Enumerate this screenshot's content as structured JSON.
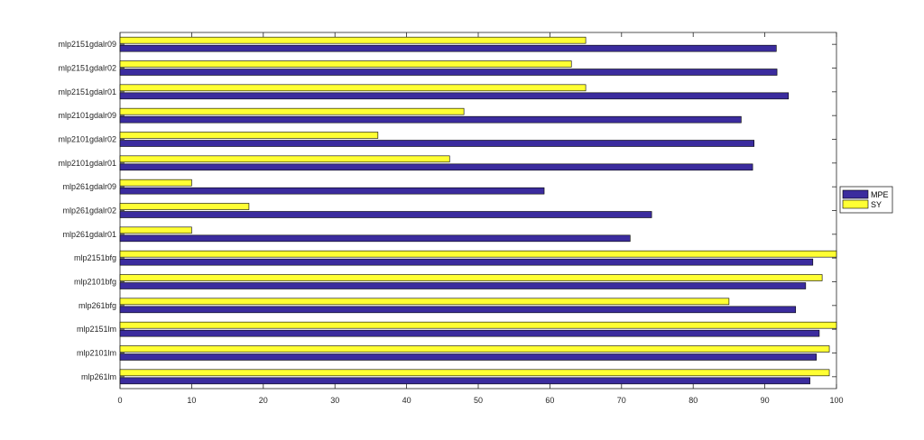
{
  "chart_data": {
    "type": "bar",
    "orientation": "horizontal",
    "categories": [
      "mlp261lm",
      "mlp2101lm",
      "mlp2151lm",
      "mlp261bfg",
      "mlp2101bfg",
      "mlp2151bfg",
      "mlp261gdalr01",
      "mlp261gdalr02",
      "mlp261gdalr09",
      "mlp2101gdalr01",
      "mlp2101gdalr02",
      "mlp2101gdalr09",
      "mlp2151gdalr01",
      "mlp2151gdalr02",
      "mlp2151gdalr09"
    ],
    "series": [
      {
        "name": "MPE",
        "color": "#3b2c9e",
        "values": [
          96.3,
          97.2,
          97.6,
          94.3,
          95.7,
          96.7,
          71.2,
          74.2,
          59.2,
          88.3,
          88.5,
          86.7,
          93.3,
          91.7,
          91.6
        ]
      },
      {
        "name": "SY",
        "color": "#ffff33",
        "values": [
          99,
          99,
          100,
          85,
          98,
          100,
          10,
          18,
          10,
          46,
          36,
          48,
          65,
          63,
          65
        ]
      }
    ],
    "xlim": [
      0,
      100
    ],
    "xticks": [
      0,
      10,
      20,
      30,
      40,
      50,
      60,
      70,
      80,
      90,
      100
    ],
    "title": "",
    "xlabel": "",
    "ylabel": "",
    "grid": false,
    "legend_position": "right"
  }
}
